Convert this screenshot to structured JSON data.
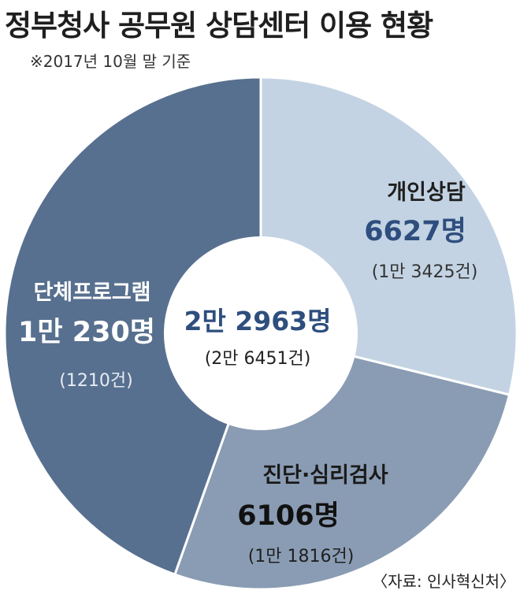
{
  "header": {
    "title": "정부청사 공무원 상담센터 이용 현황",
    "subtitle": "※2017년 10월 말 기준"
  },
  "colors": {
    "personal": "#c3d3e3",
    "diagnosis": "#8a9cb3",
    "group": "#58708f",
    "center_text": "#2e4e7e"
  },
  "chart_data": {
    "type": "pie",
    "style": "donut",
    "unit": "명",
    "slices": [
      {
        "name": "개인상담",
        "value": 6627,
        "value_label": "6627명",
        "cases_label": "(1만 3425건)"
      },
      {
        "name": "진단·심리검사",
        "value": 6106,
        "value_label": "6106명",
        "cases_label": "(1만 1816건)"
      },
      {
        "name": "단체프로그램",
        "value": 10230,
        "value_label": "1만 230명",
        "cases_label": "(1210건)"
      }
    ],
    "total": {
      "value": 22963,
      "value_label": "2만 2963명",
      "cases_label": "(2만 6451건)"
    }
  },
  "footer": {
    "source": "〈자료: 인사혁신처〉"
  }
}
